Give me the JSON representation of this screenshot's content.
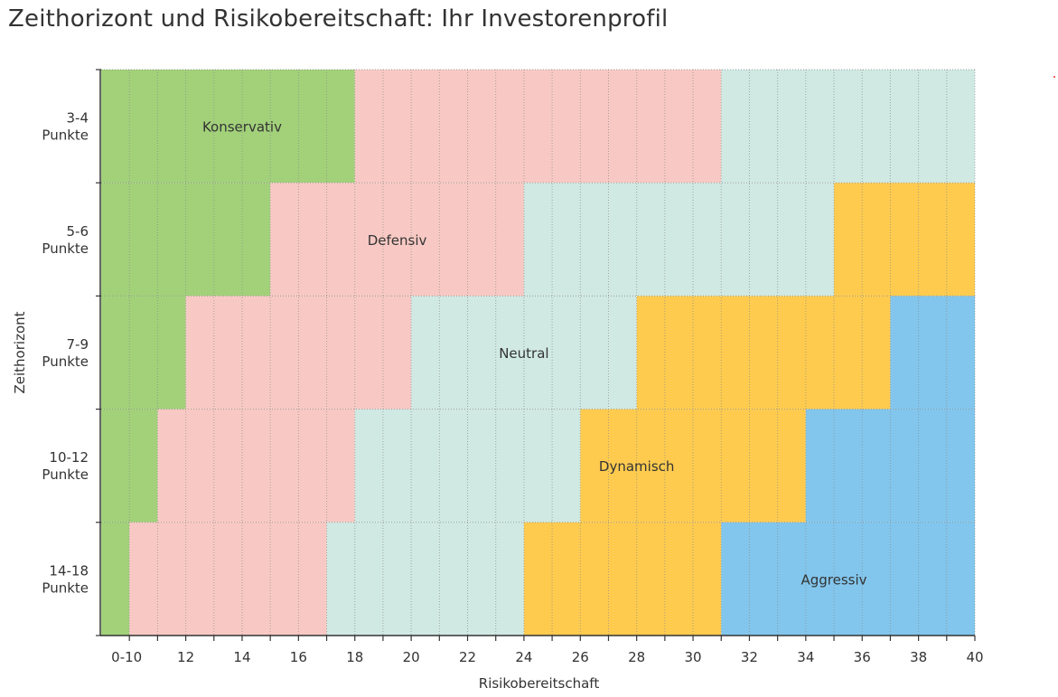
{
  "title": "Zeithorizont und Risikobereitschaft: Ihr Investorenprofil",
  "chart_data": {
    "type": "heatmap",
    "xlabel": "Risikobereitschaft",
    "ylabel": "Zeithorizont",
    "x_tick_labels": [
      "0-10",
      "12",
      "14",
      "16",
      "18",
      "20",
      "22",
      "24",
      "26",
      "28",
      "30",
      "32",
      "34",
      "36",
      "38",
      "40"
    ],
    "y_categories": [
      {
        "label": [
          "3-4",
          "Punkte"
        ]
      },
      {
        "label": [
          "5-6",
          "Punkte"
        ]
      },
      {
        "label": [
          "7-9",
          "Punkte"
        ]
      },
      {
        "label": [
          "10-12",
          "Punkte"
        ]
      },
      {
        "label": [
          "14-18",
          "Punkte"
        ]
      }
    ],
    "profiles": [
      {
        "key": "konservativ",
        "name": "Konservativ",
        "color": "#a2d17a"
      },
      {
        "key": "defensiv",
        "name": "Defensiv",
        "color": "#f8c9c4"
      },
      {
        "key": "neutral",
        "name": "Neutral",
        "color": "#d0e9e3"
      },
      {
        "key": "dynamisch",
        "name": "Dynamisch",
        "color": "#fecb4f"
      },
      {
        "key": "aggressiv",
        "name": "Aggressiv",
        "color": "#82c6ed"
      }
    ],
    "x_range": [
      9,
      40
    ],
    "rows": [
      [
        {
          "profile": "konservativ",
          "from": 9,
          "to": 18
        },
        {
          "profile": "defensiv",
          "from": 18,
          "to": 31
        },
        {
          "profile": "neutral",
          "from": 31,
          "to": 40
        }
      ],
      [
        {
          "profile": "konservativ",
          "from": 9,
          "to": 15
        },
        {
          "profile": "defensiv",
          "from": 15,
          "to": 24
        },
        {
          "profile": "neutral",
          "from": 24,
          "to": 35
        },
        {
          "profile": "dynamisch",
          "from": 35,
          "to": 40
        }
      ],
      [
        {
          "profile": "konservativ",
          "from": 9,
          "to": 12
        },
        {
          "profile": "defensiv",
          "from": 12,
          "to": 20
        },
        {
          "profile": "neutral",
          "from": 20,
          "to": 28
        },
        {
          "profile": "dynamisch",
          "from": 28,
          "to": 37
        },
        {
          "profile": "aggressiv",
          "from": 37,
          "to": 40
        }
      ],
      [
        {
          "profile": "konservativ",
          "from": 9,
          "to": 11
        },
        {
          "profile": "defensiv",
          "from": 11,
          "to": 18
        },
        {
          "profile": "neutral",
          "from": 18,
          "to": 26
        },
        {
          "profile": "dynamisch",
          "from": 26,
          "to": 34
        },
        {
          "profile": "aggressiv",
          "from": 34,
          "to": 40
        }
      ],
      [
        {
          "profile": "konservativ",
          "from": 9,
          "to": 10
        },
        {
          "profile": "defensiv",
          "from": 10,
          "to": 17
        },
        {
          "profile": "neutral",
          "from": 17,
          "to": 24
        },
        {
          "profile": "dynamisch",
          "from": 24,
          "to": 31
        },
        {
          "profile": "aggressiv",
          "from": 31,
          "to": 40
        }
      ]
    ],
    "annotations": [
      {
        "text": "Konservativ",
        "row": 0,
        "x": 14
      },
      {
        "text": "Defensiv",
        "row": 1,
        "x": 19.5
      },
      {
        "text": "Neutral",
        "row": 2,
        "x": 24
      },
      {
        "text": "Dynamisch",
        "row": 3,
        "x": 28
      },
      {
        "text": "Aggressiv",
        "row": 4,
        "x": 35
      }
    ],
    "grid": true,
    "legend": "none"
  }
}
